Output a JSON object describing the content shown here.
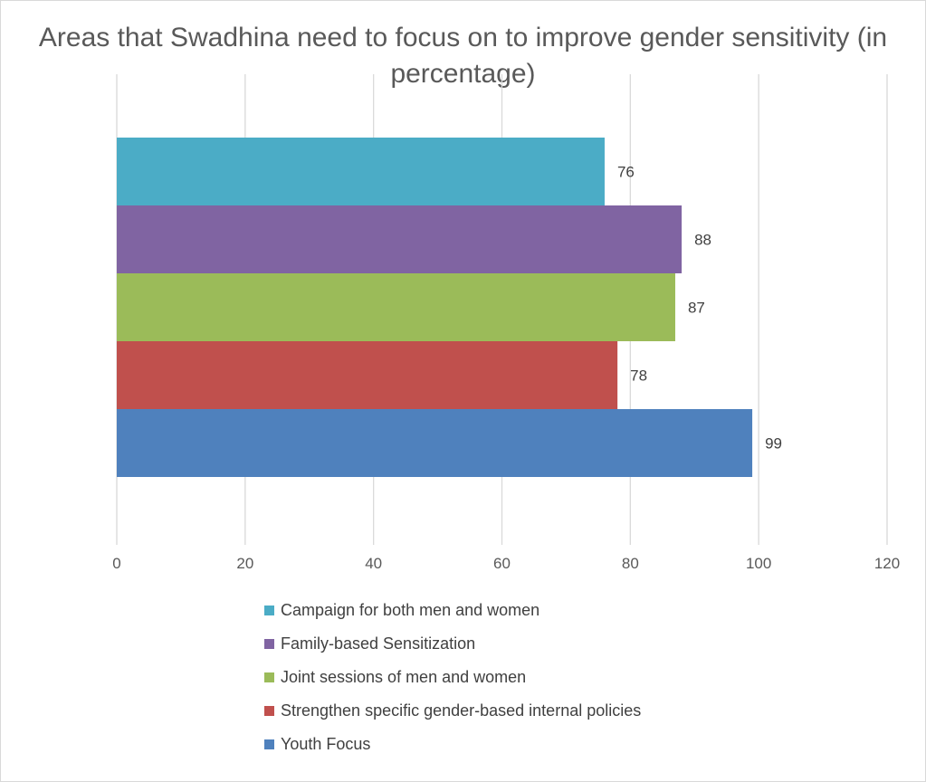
{
  "chart_data": {
    "type": "bar",
    "orientation": "horizontal",
    "title": "Areas that Swadhina need to focus on to improve gender sensitivity (in percentage)",
    "series": [
      {
        "name": "Campaign for both men and women",
        "value": 76,
        "color": "#4BACC6"
      },
      {
        "name": "Family-based Sensitization",
        "value": 88,
        "color": "#8064A2"
      },
      {
        "name": "Joint sessions of men and women",
        "value": 87,
        "color": "#9BBB59"
      },
      {
        "name": "Strengthen specific gender-based internal policies",
        "value": 78,
        "color": "#C0504D"
      },
      {
        "name": "Youth Focus",
        "value": 99,
        "color": "#4F81BD"
      }
    ],
    "xlim": [
      0,
      120
    ],
    "xticks": [
      "0",
      "20",
      "40",
      "60",
      "80",
      "100",
      "120"
    ],
    "grid": true,
    "data_labels": true,
    "legend_position": "bottom"
  }
}
